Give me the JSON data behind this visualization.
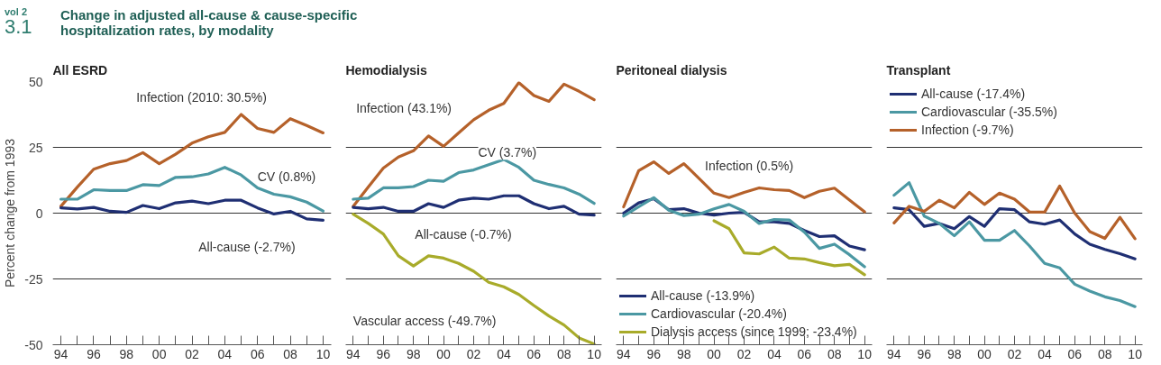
{
  "chart_data": [
    {
      "type": "line",
      "title": "All ESRD",
      "ylabel": "Percent change from 1993",
      "annotations": [
        "vol 2",
        "3.1",
        "Change in adjusted all-cause & cause-specific hospitalization rates, by modality"
      ],
      "x": [
        1994,
        1995,
        1996,
        1997,
        1998,
        1999,
        2000,
        2001,
        2002,
        2003,
        2004,
        2005,
        2006,
        2007,
        2008,
        2009,
        2010
      ],
      "series": [
        {
          "name": "Infection  (2010: 30.5%)",
          "color": "#b5612a",
          "values": [
            2.6,
            9.9,
            16.7,
            18.8,
            20,
            23,
            18.8,
            22.4,
            26.6,
            29,
            30.7,
            37.5,
            32.2,
            30.7,
            35.9,
            33.3,
            30.5
          ]
        },
        {
          "name": "CV (0.8%)",
          "color": "#4b98a3",
          "values": [
            5.3,
            5.3,
            8.9,
            8.6,
            8.6,
            10.8,
            10.5,
            13.6,
            13.8,
            14.9,
            17.4,
            14.5,
            9.6,
            7.2,
            6.2,
            4.2,
            0.8
          ]
        },
        {
          "name": "All-cause (-2.7%)",
          "color": "#1f2f73",
          "values": [
            2,
            1.6,
            2.2,
            0.7,
            0.3,
            2.9,
            1.7,
            3.9,
            4.6,
            3.6,
            4.9,
            4.9,
            2,
            -0.3,
            0.7,
            -2.2,
            -2.7
          ]
        }
      ],
      "xlim": [
        1993.5,
        2010.5
      ],
      "ylim": [
        -50,
        50
      ],
      "yticks": [
        -50,
        -25,
        0,
        25,
        50
      ],
      "xticks": [
        {
          "value": 1994,
          "label": "94"
        },
        {
          "value": 1995,
          "label": null
        },
        {
          "value": 1996,
          "label": "96"
        },
        {
          "value": 1997,
          "label": null
        },
        {
          "value": 1998,
          "label": "98"
        },
        {
          "value": 1999,
          "label": null
        },
        {
          "value": 2000,
          "label": "00"
        },
        {
          "value": 2001,
          "label": null
        },
        {
          "value": 2002,
          "label": "02"
        },
        {
          "value": 2003,
          "label": null
        },
        {
          "value": 2004,
          "label": "04"
        },
        {
          "value": 2005,
          "label": null
        },
        {
          "value": 2006,
          "label": "06"
        },
        {
          "value": 2007,
          "label": null
        },
        {
          "value": 2008,
          "label": "08"
        },
        {
          "value": 2009,
          "label": null
        },
        {
          "value": 2010,
          "label": "10"
        }
      ],
      "grid": "y",
      "legend": false
    },
    {
      "type": "line",
      "title": "Hemodialysis",
      "x": [
        1994,
        1995,
        1996,
        1997,
        1998,
        1999,
        2000,
        2001,
        2002,
        2003,
        2004,
        2005,
        2006,
        2007,
        2008,
        2009,
        2010
      ],
      "series": [
        {
          "name": "Infection (43.1%)",
          "color": "#b5612a",
          "values": [
            2.6,
            9.9,
            17.1,
            21.3,
            23.7,
            29.3,
            25.4,
            30.5,
            35.5,
            39.1,
            41.7,
            49.6,
            44.7,
            42.5,
            49,
            46.3,
            43.1
          ]
        },
        {
          "name": "CV (3.7%)",
          "color": "#4b98a3",
          "values": [
            5.3,
            5.7,
            9.6,
            9.6,
            10.1,
            12.5,
            12.1,
            15.4,
            16.4,
            18.4,
            20.4,
            17.4,
            12.5,
            10.9,
            9.6,
            7.2,
            3.7
          ]
        },
        {
          "name": "All-cause (-0.7%)",
          "color": "#1f2f73",
          "values": [
            2.2,
            1.7,
            2.2,
            0.7,
            0.7,
            3.6,
            2.2,
            4.9,
            5.7,
            5.3,
            6.6,
            6.6,
            3.6,
            1.7,
            2.6,
            -0.4,
            -0.7
          ]
        },
        {
          "name": "Vascular access (-49.7%)",
          "color": "#a8ab2a",
          "values": [
            -0.4,
            -3.9,
            -7.9,
            -16.2,
            -20.1,
            -16.2,
            -17.1,
            -19.1,
            -22.1,
            -26.3,
            -28,
            -30.9,
            -35.1,
            -39.1,
            -42.5,
            -47.4,
            -49.7
          ]
        }
      ],
      "xlim": [
        1993.5,
        2010.5
      ],
      "ylim": [
        -50,
        50
      ],
      "yticks": [
        -50,
        -25,
        0,
        25,
        50
      ],
      "xticks": [
        {
          "value": 1994,
          "label": "94"
        },
        {
          "value": 1995,
          "label": null
        },
        {
          "value": 1996,
          "label": "96"
        },
        {
          "value": 1997,
          "label": null
        },
        {
          "value": 1998,
          "label": "98"
        },
        {
          "value": 1999,
          "label": null
        },
        {
          "value": 2000,
          "label": "00"
        },
        {
          "value": 2001,
          "label": null
        },
        {
          "value": 2002,
          "label": "02"
        },
        {
          "value": 2003,
          "label": null
        },
        {
          "value": 2004,
          "label": "04"
        },
        {
          "value": 2005,
          "label": null
        },
        {
          "value": 2006,
          "label": "06"
        },
        {
          "value": 2007,
          "label": null
        },
        {
          "value": 2008,
          "label": "08"
        },
        {
          "value": 2009,
          "label": null
        },
        {
          "value": 2010,
          "label": "10"
        }
      ],
      "grid": "y",
      "legend": false,
      "tick_labels": "x"
    },
    {
      "type": "line",
      "title": "Peritoneal dialysis",
      "x": [
        1994,
        1995,
        1996,
        1997,
        1998,
        1999,
        2000,
        2001,
        2002,
        2003,
        2004,
        2005,
        2006,
        2007,
        2008,
        2009,
        2010
      ],
      "series": [
        {
          "name": "Infection (0.5%)",
          "color": "#b5612a",
          "values": [
            2.4,
            16.1,
            19.5,
            15.1,
            18.8,
            13.2,
            7.6,
            5.9,
            7.9,
            9.6,
            8.9,
            8.6,
            5.9,
            8.3,
            9.5,
            5,
            0.5
          ]
        },
        {
          "name": "All-cause (-13.9%)",
          "color": "#1f2f73",
          "values": [
            0,
            3.9,
            5.5,
            1.3,
            1.7,
            0,
            -0.7,
            0,
            0.3,
            -3.3,
            -3.3,
            -3.9,
            -6.6,
            -8.9,
            -8.6,
            -12.5,
            -13.9
          ]
        },
        {
          "name": "Cardiovascular (-20.4%)",
          "color": "#4b98a3",
          "values": [
            -1.1,
            2.4,
            5.9,
            1.1,
            -0.9,
            -0.4,
            1.6,
            3.3,
            0.7,
            -3.9,
            -2.4,
            -2.6,
            -7.2,
            -13.4,
            -11.8,
            -15.8,
            -20.4
          ]
        },
        {
          "name": "Dialysis access (since 1999; -23.4%)",
          "color": "#a8ab2a",
          "values": [
            null,
            null,
            null,
            null,
            null,
            null,
            -2.9,
            -5.9,
            -15.1,
            -15.5,
            -12.9,
            -17.1,
            -17.4,
            -18.8,
            -20,
            -19.5,
            -23.4
          ]
        }
      ],
      "xlim": [
        1993.5,
        2010.5
      ],
      "ylim": [
        -50,
        50
      ],
      "yticks": [
        -50,
        -25,
        0,
        25,
        50
      ],
      "xticks": [
        {
          "value": 1994,
          "label": "94"
        },
        {
          "value": 1995,
          "label": null
        },
        {
          "value": 1996,
          "label": "96"
        },
        {
          "value": 1997,
          "label": null
        },
        {
          "value": 1998,
          "label": "98"
        },
        {
          "value": 1999,
          "label": null
        },
        {
          "value": 2000,
          "label": "00"
        },
        {
          "value": 2001,
          "label": null
        },
        {
          "value": 2002,
          "label": "02"
        },
        {
          "value": 2003,
          "label": null
        },
        {
          "value": 2004,
          "label": "04"
        },
        {
          "value": 2005,
          "label": null
        },
        {
          "value": 2006,
          "label": "06"
        },
        {
          "value": 2007,
          "label": null
        },
        {
          "value": 2008,
          "label": "08"
        },
        {
          "value": 2009,
          "label": null
        },
        {
          "value": 2010,
          "label": "10"
        }
      ],
      "grid": "y",
      "legend": "bottom left",
      "tick_labels": "x"
    },
    {
      "type": "line",
      "title": "Transplant",
      "x": [
        1994,
        1995,
        1996,
        1997,
        1998,
        1999,
        2000,
        2001,
        2002,
        2003,
        2004,
        2005,
        2006,
        2007,
        2008,
        2009,
        2010
      ],
      "series": [
        {
          "name": "All-cause (-17.4%)",
          "color": "#1f2f73",
          "values": [
            2,
            1.3,
            -5,
            -3.9,
            -5.9,
            -1.3,
            -5,
            1.7,
            1.3,
            -3.3,
            -4.2,
            -2.6,
            -7.9,
            -11.8,
            -13.8,
            -15.4,
            -17.4
          ]
        },
        {
          "name": "Cardiovascular (-35.5%)",
          "color": "#4b98a3",
          "values": [
            6.8,
            11.6,
            -1.1,
            -3.9,
            -8.6,
            -3.3,
            -10.3,
            -10.3,
            -6.6,
            -12.5,
            -19.1,
            -20.8,
            -27,
            -29.6,
            -31.8,
            -33.2,
            -35.5
          ]
        },
        {
          "name": "Infection (-9.7%)",
          "color": "#b5612a",
          "values": [
            -3.7,
            2.6,
            0.7,
            4.9,
            2,
            7.9,
            3.3,
            7.6,
            5.3,
            0.4,
            0.4,
            10.3,
            0,
            -7,
            -9.6,
            -1.6,
            -9.7
          ]
        }
      ],
      "xlim": [
        1993.5,
        2010.5
      ],
      "ylim": [
        -50,
        50
      ],
      "yticks": [
        -50,
        -25,
        0,
        25,
        50
      ],
      "xticks": [
        {
          "value": 1994,
          "label": "94"
        },
        {
          "value": 1995,
          "label": null
        },
        {
          "value": 1996,
          "label": "96"
        },
        {
          "value": 1997,
          "label": null
        },
        {
          "value": 1998,
          "label": "98"
        },
        {
          "value": 1999,
          "label": null
        },
        {
          "value": 2000,
          "label": "00"
        },
        {
          "value": 2001,
          "label": null
        },
        {
          "value": 2002,
          "label": "02"
        },
        {
          "value": 2003,
          "label": null
        },
        {
          "value": 2004,
          "label": "04"
        },
        {
          "value": 2005,
          "label": null
        },
        {
          "value": 2006,
          "label": "06"
        },
        {
          "value": 2007,
          "label": null
        },
        {
          "value": 2008,
          "label": "08"
        },
        {
          "value": 2009,
          "label": null
        },
        {
          "value": 2010,
          "label": "10"
        }
      ],
      "grid": "y",
      "legend": "top left",
      "tick_labels": "x"
    }
  ]
}
